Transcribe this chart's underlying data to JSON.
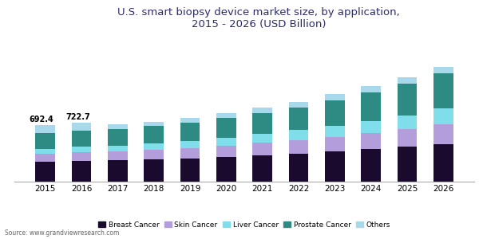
{
  "title": "U.S. smart biopsy device market size, by application,\n2015 - 2026 (USD Billion)",
  "source": "Source: www.grandviewresearch.com",
  "years": [
    2015,
    2016,
    2017,
    2018,
    2019,
    2020,
    2021,
    2022,
    2023,
    2024,
    2025,
    2026
  ],
  "breast_cancer": [
    240,
    255,
    260,
    270,
    285,
    305,
    325,
    345,
    370,
    395,
    425,
    460
  ],
  "skin_cancer": [
    100,
    108,
    112,
    118,
    128,
    138,
    150,
    162,
    178,
    195,
    215,
    240
  ],
  "liver_cancer": [
    55,
    62,
    68,
    76,
    84,
    96,
    110,
    123,
    138,
    155,
    172,
    198
  ],
  "prostate_cancer": [
    200,
    198,
    205,
    215,
    222,
    240,
    258,
    280,
    310,
    345,
    385,
    425
  ],
  "others": [
    97.4,
    99.7,
    55,
    55,
    58,
    60,
    65,
    68,
    72,
    75,
    78,
    82
  ],
  "bar_colors": {
    "breast_cancer": "#1a0a2e",
    "skin_cancer": "#b39ddb",
    "liver_cancer": "#80deea",
    "prostate_cancer": "#2e8b84",
    "others": "#a8d8ea"
  },
  "annotations": {
    "2015": "692.4",
    "2016": "722.7"
  },
  "ylim": [
    0,
    1550
  ],
  "background_color": "#ffffff",
  "title_color": "#2c2c6c",
  "title_fontsize": 9.5
}
